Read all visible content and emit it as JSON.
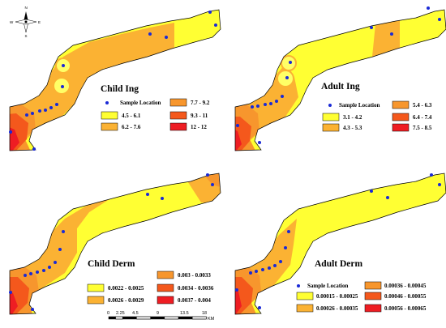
{
  "north_arrow": {
    "n": "N",
    "s": "S",
    "e": "E",
    "w": "W"
  },
  "panels": [
    {
      "title": "Child Ing",
      "legend": {
        "sample_label": "Sample Location",
        "classes": [
          {
            "label": "4.5 - 6.1",
            "color": "#ffff33"
          },
          {
            "label": "6.2 - 7.6",
            "color": "#fbb233"
          },
          {
            "label": "7.7 - 9.2",
            "color": "#f7962d"
          },
          {
            "label": "9.3 - 11",
            "color": "#f4581c"
          },
          {
            "label": "12 - 12",
            "color": "#ee1d23"
          }
        ]
      }
    },
    {
      "title": "Adult Ing",
      "legend": {
        "sample_label": "Sample Location",
        "classes": [
          {
            "label": "3.1 - 4.2",
            "color": "#ffff33"
          },
          {
            "label": "4.3 - 5.3",
            "color": "#fbb233"
          },
          {
            "label": "5.4 - 6.3",
            "color": "#f7962d"
          },
          {
            "label": "6.4 - 7.4",
            "color": "#f4581c"
          },
          {
            "label": "7.5 - 8.5",
            "color": "#ee1d23"
          }
        ]
      }
    },
    {
      "title": "Child Derm",
      "legend": {
        "sample_label": "",
        "classes": [
          {
            "label": "0.0022 - 0.0025",
            "color": "#ffff33"
          },
          {
            "label": "0.0026 - 0.0029",
            "color": "#fbb233"
          },
          {
            "label": "0.003 - 0.0033",
            "color": "#f7962d"
          },
          {
            "label": "0.0034 - 0.0036",
            "color": "#f4581c"
          },
          {
            "label": "0.0037 - 0.004",
            "color": "#ee1d23"
          }
        ]
      }
    },
    {
      "title": "Adult Derm",
      "legend": {
        "sample_label": "Sample Location",
        "classes": [
          {
            "label": "0.00015 - 0.00025",
            "color": "#ffff33"
          },
          {
            "label": "0.00026 - 0.00035",
            "color": "#fbb233"
          },
          {
            "label": "0.00036 - 0.00045",
            "color": "#f7962d"
          },
          {
            "label": "0.00046 - 0.00055",
            "color": "#f4581c"
          },
          {
            "label": "0.00056 - 0.00065",
            "color": "#ee1d23"
          }
        ]
      }
    }
  ],
  "scale_bar": {
    "ticks": [
      "0",
      "2.25",
      "4.5",
      "9",
      "13.5",
      "18"
    ],
    "unit": "KM"
  },
  "colors": {
    "sample_point": "#1a2ad6",
    "outline": "#000000"
  }
}
